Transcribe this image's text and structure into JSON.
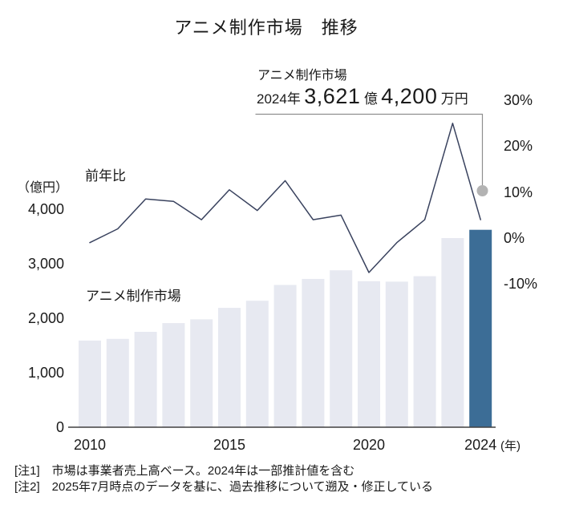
{
  "page": {
    "title": "アニメ制作市場　推移"
  },
  "annotation": {
    "series_label": "アニメ制作市場",
    "year_prefix": "2024年",
    "value_big_1": "3,621",
    "value_unit_1": "億",
    "value_big_2": "4,200",
    "value_unit_2": "万円"
  },
  "labels": {
    "line_series": "前年比",
    "bar_series": "アニメ制作市場",
    "left_axis_unit": "（億円）",
    "x_axis_unit": "(年)"
  },
  "notes": [
    "[注1]　市場は事業者売上高ベース。2024年は一部推計値を含む",
    "[注2]　2025年7月時点のデータを基に、過去推移について遡及・修正している"
  ],
  "colors": {
    "bar_light": "#e7e9f1",
    "bar_highlight": "#3c6d96",
    "line": "#39425e",
    "dot": "#b3b3b3",
    "connector": "#8f8f8f",
    "axis": "#404040",
    "text": "#1a1a1a"
  },
  "chart_data": {
    "type": "combo",
    "title": "アニメ制作市場　推移",
    "categories": [
      2010,
      2011,
      2012,
      2013,
      2014,
      2015,
      2016,
      2017,
      2018,
      2019,
      2020,
      2021,
      2022,
      2023,
      2024
    ],
    "series": [
      {
        "name": "アニメ制作市場",
        "type": "bar",
        "unit": "億円",
        "values": [
          1590,
          1620,
          1750,
          1910,
          1980,
          2190,
          2320,
          2610,
          2720,
          2880,
          2680,
          2670,
          2770,
          3470,
          3621.42
        ]
      },
      {
        "name": "前年比",
        "type": "line",
        "unit": "%",
        "values": [
          -1,
          2,
          8.5,
          8,
          4,
          10.5,
          6,
          12.5,
          4,
          5,
          -7.5,
          -1,
          4,
          25,
          4
        ]
      }
    ],
    "left_axis": {
      "label": "（億円）",
      "ticks": [
        4000,
        3000,
        2000,
        1000,
        0
      ],
      "tick_labels": [
        "4,000",
        "3,000",
        "2,000",
        "1,000",
        "0"
      ],
      "range": [
        0,
        4300
      ]
    },
    "right_axis": {
      "ticks": [
        30,
        20,
        10,
        0,
        -10
      ],
      "tick_labels": [
        "30%",
        "20%",
        "10%",
        "0%",
        "-10%"
      ],
      "range": [
        -14.5,
        34.5
      ]
    },
    "x_ticks": [
      {
        "label": "2010",
        "year": 2010
      },
      {
        "label": "2015",
        "year": 2015
      },
      {
        "label": "2020",
        "year": 2020
      },
      {
        "label": "2024",
        "year": 2024
      }
    ],
    "x_axis_unit": "(年)",
    "highlight_category": 2024,
    "highlight_value_text": "2024年 3,621億4,200万円",
    "grid": false,
    "legend_position": "inline-labels"
  }
}
